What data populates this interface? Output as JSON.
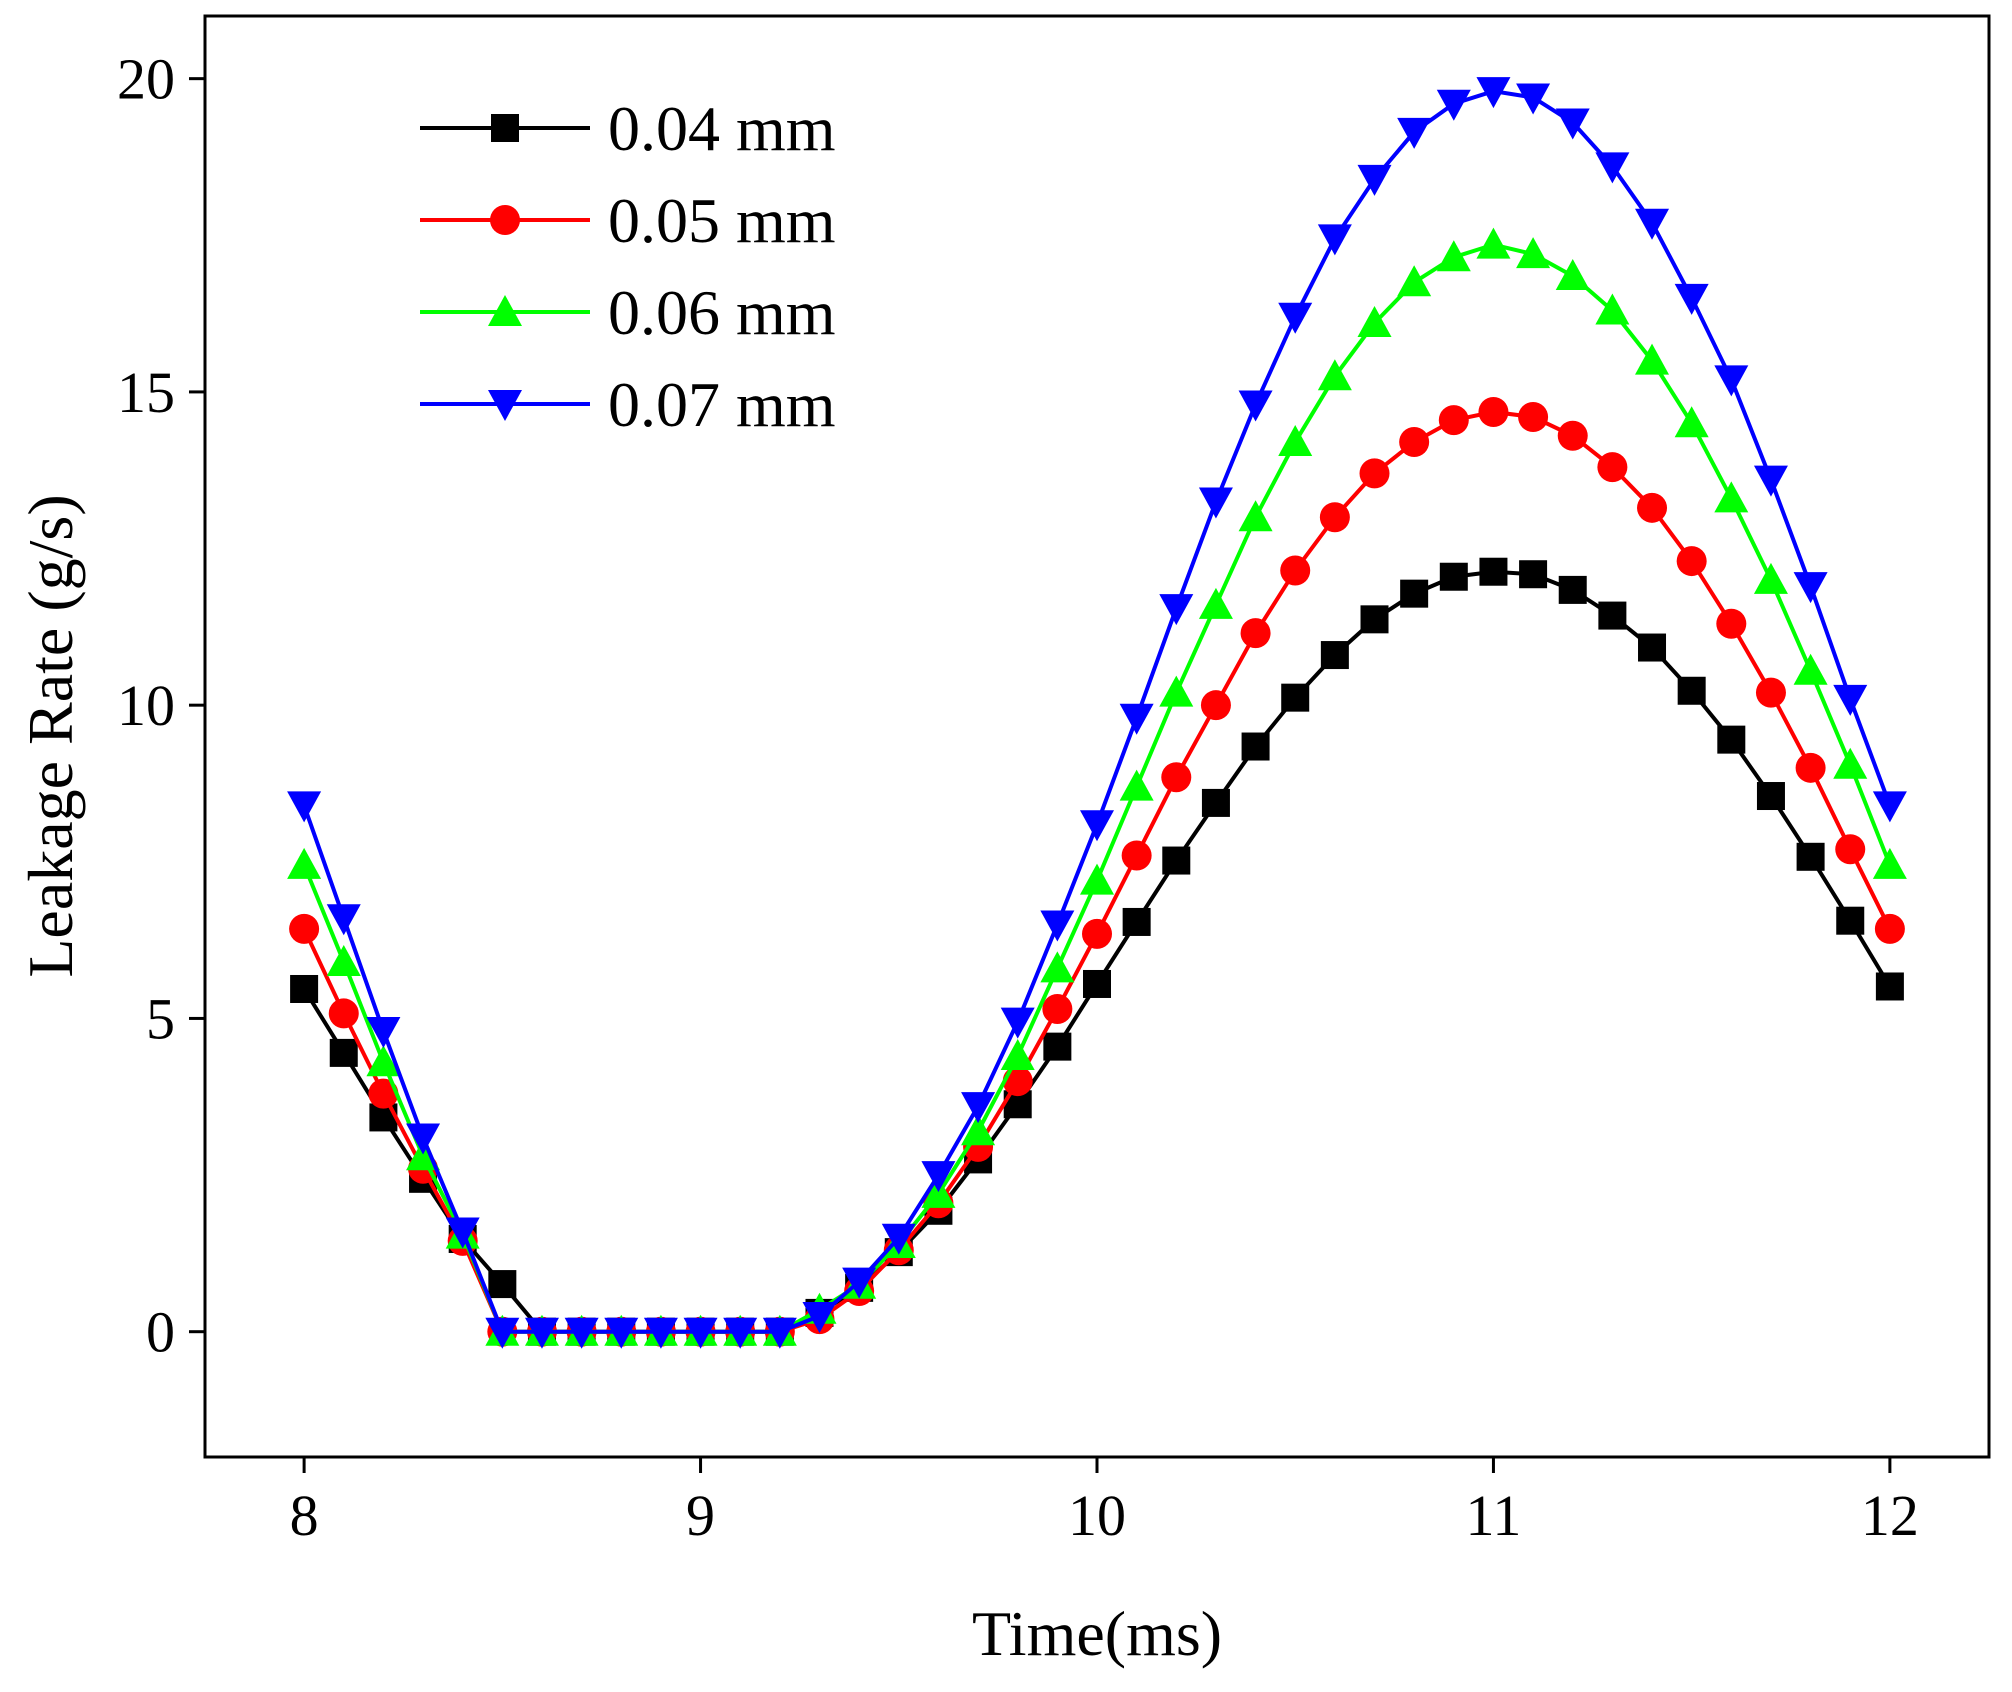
{
  "chart_data": {
    "type": "line",
    "title": "",
    "xlabel": "Time(ms)",
    "ylabel": "Leakage Rate (g/s)",
    "xlim": [
      7.75,
      12.25
    ],
    "ylim": [
      -2.0,
      21.0
    ],
    "xticks": [
      8,
      9,
      10,
      11,
      12
    ],
    "yticks": [
      0,
      5,
      10,
      15,
      20
    ],
    "grid": false,
    "legend_position": "top-left",
    "x_start": 8.0,
    "x_step": 0.1,
    "series": [
      {
        "name": "0.04 mm",
        "color": "#000000",
        "marker": "square",
        "values": [
          5.47,
          4.45,
          3.42,
          2.44,
          1.48,
          0.76,
          0,
          0,
          0,
          0,
          0,
          0,
          0,
          0.3,
          0.7,
          1.27,
          1.93,
          2.75,
          3.63,
          4.55,
          5.55,
          6.54,
          7.52,
          8.44,
          9.34,
          10.12,
          10.8,
          11.37,
          11.78,
          12.05,
          12.13,
          12.09,
          11.84,
          11.43,
          10.92,
          10.23,
          9.45,
          8.55,
          7.58,
          6.56,
          5.51
        ]
      },
      {
        "name": "0.05 mm",
        "color": "#ff0000",
        "marker": "circle",
        "values": [
          6.43,
          5.08,
          3.8,
          2.6,
          1.45,
          0,
          0,
          0,
          0,
          0,
          0,
          0,
          0,
          0.2,
          0.65,
          1.3,
          2.05,
          2.95,
          4.0,
          5.15,
          6.35,
          7.6,
          8.85,
          10.0,
          11.15,
          12.15,
          13.0,
          13.7,
          14.2,
          14.55,
          14.68,
          14.6,
          14.3,
          13.8,
          13.15,
          12.3,
          11.3,
          10.2,
          9.0,
          7.7,
          6.43
        ]
      },
      {
        "name": "0.06 mm",
        "color": "#00ff00",
        "marker": "triangle-up",
        "values": [
          7.45,
          5.9,
          4.3,
          2.8,
          1.55,
          0,
          0,
          0,
          0,
          0,
          0,
          0,
          0,
          0.35,
          0.75,
          1.4,
          2.2,
          3.2,
          4.4,
          5.8,
          7.2,
          8.7,
          10.2,
          11.6,
          13.0,
          14.2,
          15.25,
          16.1,
          16.75,
          17.15,
          17.35,
          17.2,
          16.85,
          16.3,
          15.5,
          14.5,
          13.3,
          12.0,
          10.55,
          9.05,
          7.45
        ]
      },
      {
        "name": "0.07 mm",
        "color": "#0000ff",
        "marker": "triangle-down",
        "values": [
          8.4,
          6.6,
          4.8,
          3.1,
          1.6,
          0,
          0,
          0,
          0,
          0,
          0,
          0,
          0,
          0.25,
          0.8,
          1.5,
          2.5,
          3.6,
          4.95,
          6.5,
          8.1,
          9.8,
          11.55,
          13.25,
          14.8,
          16.2,
          17.45,
          18.4,
          19.15,
          19.6,
          19.8,
          19.7,
          19.3,
          18.6,
          17.7,
          16.5,
          15.2,
          13.6,
          11.9,
          10.1,
          8.4
        ]
      }
    ]
  }
}
